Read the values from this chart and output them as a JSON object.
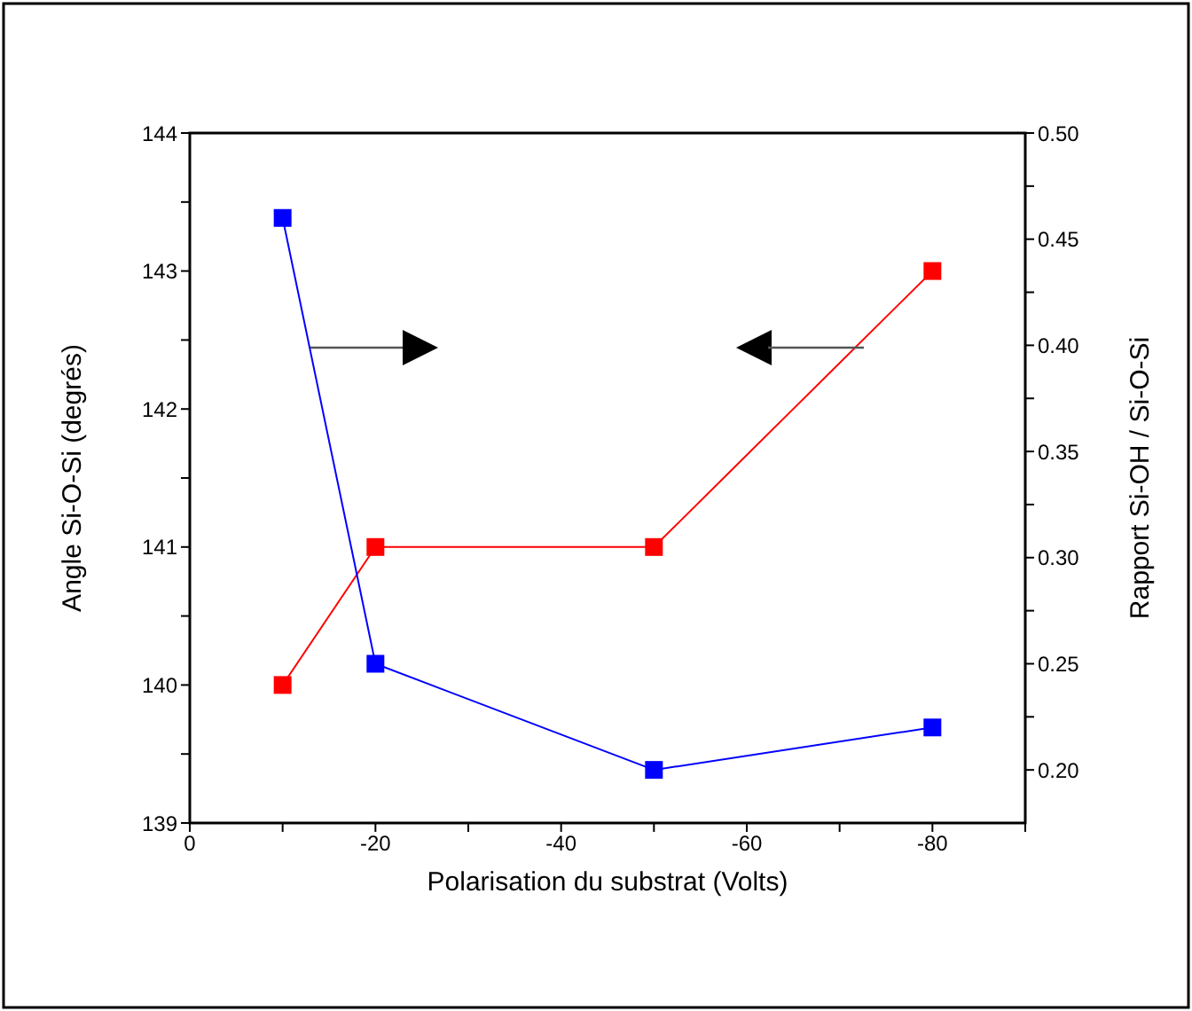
{
  "chart_data": {
    "type": "line",
    "xlabel": "Polarisation du substrat (Volts)",
    "ylabel": "Angle Si-O-Si (degrés)",
    "y2label": "Rapport Si-OH / Si-O-Si",
    "x": [
      -10,
      -20,
      -50,
      -80
    ],
    "series": [
      {
        "color": "#ff0000",
        "values": [
          140,
          141,
          141,
          143
        ]
      },
      {
        "color": "#0000ff",
        "values": [
          0.46,
          0.25,
          0.2,
          0.22
        ],
        "axis": "y2"
      }
    ],
    "xlim": [
      0,
      -90
    ],
    "xticks": [
      0,
      {
        "value": -10,
        "label": null
      },
      -20,
      {
        "value": -30,
        "label": null
      },
      -40,
      {
        "value": -50,
        "label": null
      },
      -60,
      {
        "value": -70,
        "label": null
      },
      -80,
      {
        "value": -90,
        "label": null
      }
    ],
    "ylim": [
      139,
      144
    ],
    "yticks": [
      139,
      {
        "value": 139.5,
        "label": null
      },
      140,
      {
        "value": 140.5,
        "label": null
      },
      141,
      {
        "value": 141.5,
        "label": null
      },
      142,
      {
        "value": 142.5,
        "label": null
      },
      143,
      {
        "value": 143.5,
        "label": null
      },
      144
    ],
    "y2lim": [
      0.175,
      0.5
    ],
    "y2ticks": [
      {
        "value": 0.2,
        "label": "0.20"
      },
      {
        "value": 0.225,
        "label": null
      },
      {
        "value": 0.25,
        "label": "0.25"
      },
      {
        "value": 0.275,
        "label": null
      },
      {
        "value": 0.3,
        "label": "0.30"
      },
      {
        "value": 0.325,
        "label": null
      },
      {
        "value": 0.35,
        "label": "0.35"
      },
      {
        "value": 0.375,
        "label": null
      },
      {
        "value": 0.4,
        "label": "0.40"
      },
      {
        "value": 0.425,
        "label": null
      },
      {
        "value": 0.45,
        "label": "0.45"
      },
      {
        "value": 0.475,
        "label": null
      },
      {
        "value": 0.5,
        "label": "0.50"
      }
    ],
    "marker": "square",
    "line_style": "solid",
    "grid": false,
    "legend": false
  }
}
